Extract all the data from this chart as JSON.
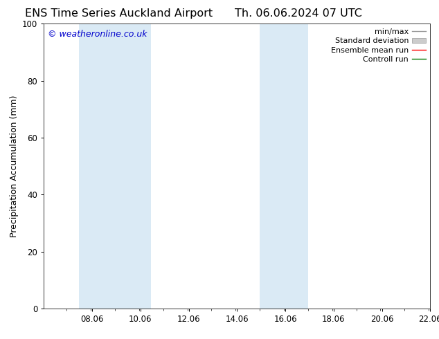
{
  "title_left": "ENS Time Series Auckland Airport",
  "title_right": "Th. 06.06.2024 07 UTC",
  "ylabel": "Precipitation Accumulation (mm)",
  "watermark": "© weatheronline.co.uk",
  "watermark_color": "#0000cc",
  "ylim": [
    0,
    100
  ],
  "yticks": [
    0,
    20,
    40,
    60,
    80,
    100
  ],
  "xlim_start": 6.06,
  "xlim_end": 22.06,
  "xtick_labels": [
    "08.06",
    "10.06",
    "12.06",
    "14.06",
    "16.06",
    "18.06",
    "20.06",
    "22.06"
  ],
  "xtick_positions": [
    8.06,
    10.06,
    12.06,
    14.06,
    16.06,
    18.06,
    20.06,
    22.06
  ],
  "shaded_bands": [
    {
      "x_start": 7.5,
      "x_end": 9.0
    },
    {
      "x_start": 9.0,
      "x_end": 10.5
    },
    {
      "x_start": 15.0,
      "x_end": 16.0
    },
    {
      "x_start": 16.0,
      "x_end": 17.0
    }
  ],
  "band_color": "#daeaf5",
  "background_color": "#ffffff",
  "legend_entries": [
    {
      "label": "min/max",
      "color": "#aaaaaa",
      "style": "minmax"
    },
    {
      "label": "Standard deviation",
      "color": "#cccccc",
      "style": "box"
    },
    {
      "label": "Ensemble mean run",
      "color": "#ff0000",
      "style": "line"
    },
    {
      "label": "Controll run",
      "color": "#007700",
      "style": "line"
    }
  ],
  "title_fontsize": 11.5,
  "axis_fontsize": 9,
  "tick_fontsize": 8.5,
  "legend_fontsize": 8,
  "watermark_fontsize": 9
}
